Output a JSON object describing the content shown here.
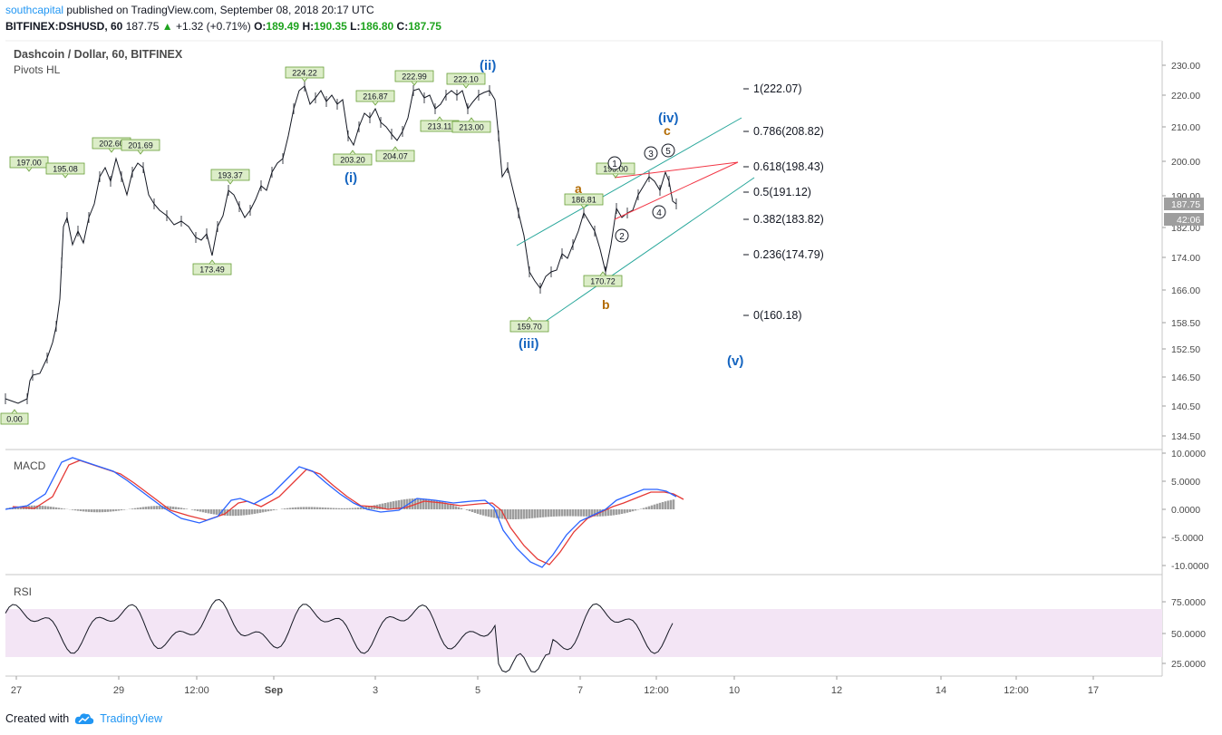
{
  "header": {
    "author": "southcapital",
    "published_text": " published on TradingView.com, September 08, 2018 20:17 UTC",
    "symbol": "BITFINEX:DSHUSD, 60",
    "last": "187.75",
    "change": "+1.32 (+0.71%)",
    "o_label": "O:",
    "o": "189.49",
    "h_label": "H:",
    "h": "190.35",
    "l_label": "L:",
    "l": "186.80",
    "c_label": "C:",
    "c": "187.75"
  },
  "legend": {
    "title": "Dashcoin / Dollar, 60, BITFINEX",
    "indicator": "Pivots HL"
  },
  "colors": {
    "up": "#1ea31e",
    "price_line": "#000000",
    "macd": "#2962ff",
    "signal": "#e53935",
    "hist": "#9e9e9e",
    "channel": "#26a69a",
    "triangle": "#f23645",
    "wave_blue": "#1565c0",
    "wave_orange": "#b26a00",
    "pivot_fill": "#dcedc8",
    "pivot_border": "#689f38",
    "rsi_band": "#f3e5f5"
  },
  "price_axis": {
    "ticks": [
      "230.00",
      "220.00",
      "210.00",
      "200.00",
      "190.00",
      "182.00",
      "174.00",
      "166.00",
      "158.50",
      "152.50",
      "146.50",
      "140.50",
      "134.50"
    ],
    "last_price": "187.75",
    "countdown": "42:06"
  },
  "macd_axis": {
    "ticks": [
      "10.0000",
      "5.0000",
      "0.0000",
      "-5.0000",
      "-10.0000"
    ]
  },
  "rsi_axis": {
    "ticks": [
      "75.0000",
      "50.0000",
      "25.0000"
    ]
  },
  "time_axis": {
    "ticks": [
      "27",
      "29",
      "12:00",
      "Sep",
      "3",
      "5",
      "7",
      "12:00",
      "10",
      "12",
      "14",
      "12:00",
      "17"
    ]
  },
  "panes": {
    "macd_label": "MACD",
    "rsi_label": "RSI"
  },
  "fib_levels": [
    "1(222.07)",
    "0.786(208.82)",
    "0.618(198.43)",
    "0.5(191.12)",
    "0.382(183.82)",
    "0.236(174.79)",
    "0(160.18)"
  ],
  "pivots": [
    "0.00",
    "197.00",
    "195.08",
    "202.60",
    "201.69",
    "193.37",
    "173.49",
    "224.22",
    "203.20",
    "216.87",
    "204.07",
    "222.99",
    "213.11",
    "222.10",
    "213.00",
    "159.70",
    "186.81",
    "170.72",
    "193.00"
  ],
  "waves": {
    "i": "(i)",
    "ii": "(ii)",
    "iii": "(iii)",
    "iv": "(iv)",
    "v": "(v)",
    "a": "a",
    "b": "b",
    "c": "c",
    "n1": "1",
    "n2": "2",
    "n3": "3",
    "n4": "4",
    "n5": "5"
  },
  "footer": {
    "created_with": "Created with",
    "brand": "TradingView"
  }
}
